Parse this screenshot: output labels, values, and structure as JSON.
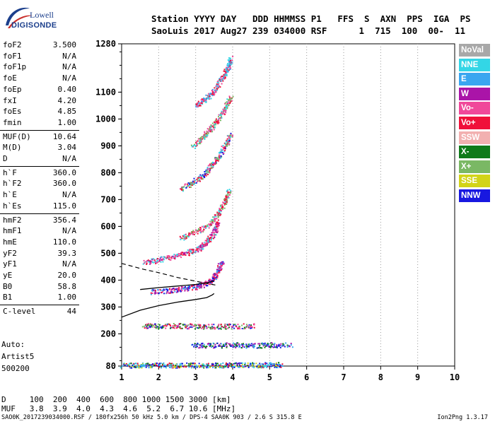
{
  "logo": {
    "line1": "Lowell",
    "line2": "DIGISONDE"
  },
  "header": {
    "line1": "Station YYYY DAY   DDD HHMMSS P1   FFS  S  AXN  PPS  IGA  PS",
    "line2": "SaoLuis 2017 Aug27 239 034000 RSF      1  715  100  00-  11"
  },
  "params": [
    {
      "name": "foF2",
      "value": "3.500"
    },
    {
      "name": "foF1",
      "value": "N/A"
    },
    {
      "name": "foF1p",
      "value": "N/A"
    },
    {
      "name": "foE",
      "value": "N/A"
    },
    {
      "name": "foEp",
      "value": "0.40"
    },
    {
      "name": "fxI",
      "value": "4.20"
    },
    {
      "name": "foEs",
      "value": "4.85"
    },
    {
      "name": "fmin",
      "value": "1.00"
    },
    {
      "name": "MUF(D)",
      "value": "10.64"
    },
    {
      "name": "M(D)",
      "value": "3.04"
    },
    {
      "name": "D",
      "value": "N/A"
    },
    {
      "name": "h`F",
      "value": "360.0"
    },
    {
      "name": "h`F2",
      "value": "360.0"
    },
    {
      "name": "h`E",
      "value": "N/A"
    },
    {
      "name": "h`Es",
      "value": "115.0"
    },
    {
      "name": "hmF2",
      "value": "356.4"
    },
    {
      "name": "hmF1",
      "value": "N/A"
    },
    {
      "name": "hmE",
      "value": "110.0"
    },
    {
      "name": "yF2",
      "value": "39.3"
    },
    {
      "name": "yF1",
      "value": "N/A"
    },
    {
      "name": "yE",
      "value": "20.0"
    },
    {
      "name": "B0",
      "value": "58.8"
    },
    {
      "name": "B1",
      "value": "1.00"
    },
    {
      "name": "C-level",
      "value": "44"
    }
  ],
  "auto": {
    "line1": "Auto:",
    "line2": "Artist5",
    "line3": "500200"
  },
  "legend": [
    {
      "label": "NoVal",
      "color": "#a8a8a8"
    },
    {
      "label": "NNE",
      "color": "#33d6e6"
    },
    {
      "label": "E",
      "color": "#3aa6f0"
    },
    {
      "label": "W",
      "color": "#aa14a8"
    },
    {
      "label": "Vo-",
      "color": "#f0489a"
    },
    {
      "label": "Vo+",
      "color": "#f0103a"
    },
    {
      "label": "SSW",
      "color": "#f2b0b0"
    },
    {
      "label": "X-",
      "color": "#0f7a1a"
    },
    {
      "label": "X+",
      "color": "#7ab864"
    },
    {
      "label": "SSE",
      "color": "#d2d418"
    },
    {
      "label": "NNW",
      "color": "#1818e0"
    }
  ],
  "bottom": {
    "d_line": "D     100  200  400  600  800 1000 1500 3000 [km]",
    "muf_line": "MUF   3.8  3.9  4.0  4.3  4.6  5.2  6.7 10.6 [MHz]"
  },
  "footer": {
    "left": "SAO0K_2017239034000.RSF / 180fx256h 50 kHz 5.0 km / DPS-4 SAA0K 903 / 2.6 S 315.8 E",
    "right": "Ion2Png 1.3.17"
  },
  "chart_data": {
    "type": "scatter",
    "title": "",
    "xlabel": "",
    "ylabel": "",
    "xlim": [
      1,
      10
    ],
    "ylim": [
      80,
      1280
    ],
    "x_ticks": [
      1,
      2,
      3,
      4,
      5,
      6,
      7,
      8,
      9,
      10
    ],
    "y_ticks": [
      80,
      200,
      300,
      400,
      500,
      600,
      700,
      800,
      900,
      1000,
      1100,
      1280
    ],
    "grid": "dotted vertical lines",
    "traces": [
      {
        "name": "Es",
        "points": [
          [
            1.0,
            85
          ],
          [
            1.5,
            84
          ],
          [
            2.0,
            85
          ],
          [
            2.5,
            84
          ],
          [
            3.0,
            85
          ],
          [
            3.5,
            84
          ],
          [
            4.0,
            86
          ],
          [
            4.5,
            85
          ],
          [
            5.0,
            86
          ],
          [
            5.3,
            86
          ]
        ]
      },
      {
        "name": "Es",
        "points": [
          [
            2.9,
            160
          ],
          [
            3.4,
            158
          ],
          [
            4.0,
            160
          ],
          [
            4.5,
            158
          ],
          [
            5.0,
            160
          ],
          [
            5.6,
            161
          ]
        ]
      },
      {
        "name": "Es",
        "points": [
          [
            1.6,
            232
          ],
          [
            2.0,
            230
          ],
          [
            2.5,
            232
          ],
          [
            3.0,
            230
          ],
          [
            3.5,
            229
          ],
          [
            4.0,
            230
          ],
          [
            4.6,
            231
          ]
        ]
      },
      {
        "name": "F",
        "points": [
          [
            1.8,
            358
          ],
          [
            2.2,
            362
          ],
          [
            2.6,
            368
          ],
          [
            3.0,
            377
          ],
          [
            3.3,
            390
          ],
          [
            3.5,
            410
          ],
          [
            3.6,
            440
          ],
          [
            3.7,
            470
          ]
        ]
      },
      {
        "name": "F",
        "points": [
          [
            1.6,
            465
          ],
          [
            2.0,
            478
          ],
          [
            2.4,
            490
          ],
          [
            2.8,
            505
          ],
          [
            3.1,
            520
          ],
          [
            3.3,
            545
          ],
          [
            3.5,
            580
          ],
          [
            3.6,
            620
          ]
        ]
      },
      {
        "name": "F",
        "points": [
          [
            2.6,
            560
          ],
          [
            3.0,
            580
          ],
          [
            3.4,
            610
          ],
          [
            3.6,
            650
          ],
          [
            3.8,
            700
          ],
          [
            3.9,
            740
          ]
        ]
      },
      {
        "name": "F",
        "points": [
          [
            2.6,
            740
          ],
          [
            2.9,
            765
          ],
          [
            3.2,
            790
          ],
          [
            3.4,
            825
          ],
          [
            3.6,
            860
          ],
          [
            3.8,
            905
          ],
          [
            3.95,
            950
          ]
        ]
      },
      {
        "name": "F",
        "points": [
          [
            2.9,
            900
          ],
          [
            3.2,
            935
          ],
          [
            3.4,
            965
          ],
          [
            3.6,
            1000
          ],
          [
            3.8,
            1045
          ],
          [
            3.95,
            1085
          ]
        ]
      },
      {
        "name": "F",
        "points": [
          [
            3.0,
            1050
          ],
          [
            3.3,
            1080
          ],
          [
            3.5,
            1110
          ],
          [
            3.7,
            1150
          ],
          [
            3.85,
            1190
          ],
          [
            3.95,
            1230
          ]
        ]
      }
    ],
    "model_profile": {
      "points": [
        [
          1.0,
          262
        ],
        [
          1.5,
          288
        ],
        [
          2.0,
          305
        ],
        [
          2.5,
          318
        ],
        [
          3.0,
          328
        ],
        [
          3.3,
          335
        ],
        [
          3.45,
          345
        ],
        [
          3.5,
          350
        ]
      ]
    },
    "model_x": {
      "points": [
        [
          1.5,
          365
        ],
        [
          2.0,
          372
        ],
        [
          2.5,
          378
        ],
        [
          3.0,
          384
        ],
        [
          3.3,
          390
        ],
        [
          3.5,
          398
        ]
      ]
    },
    "dashed": {
      "points": [
        [
          1.0,
          462
        ],
        [
          1.6,
          440
        ],
        [
          2.0,
          428
        ],
        [
          2.5,
          410
        ],
        [
          3.0,
          396
        ],
        [
          3.4,
          385
        ],
        [
          3.6,
          380
        ]
      ]
    }
  }
}
